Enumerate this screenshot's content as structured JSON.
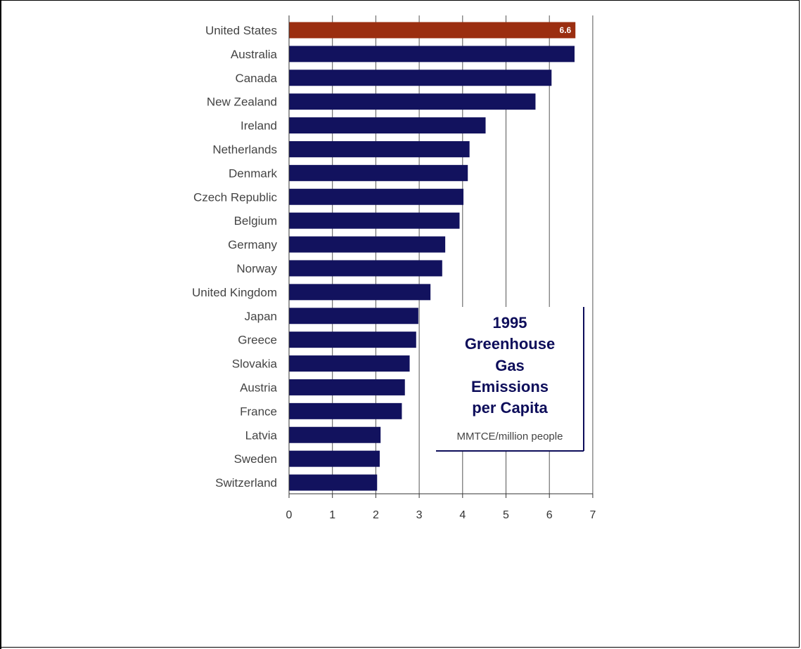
{
  "chart_data": {
    "type": "bar",
    "orientation": "horizontal",
    "title_lines": [
      "1995",
      "Greenhouse",
      "Gas",
      "Emissions",
      "per Capita"
    ],
    "units": "MMTCE/million people",
    "categories": [
      "United States",
      "Australia",
      "Canada",
      "New Zealand",
      "Ireland",
      "Netherlands",
      "Denmark",
      "Czech Republic",
      "Belgium",
      "Germany",
      "Norway",
      "United Kingdom",
      "Japan",
      "Greece",
      "Slovakia",
      "Austria",
      "France",
      "Latvia",
      "Sweden",
      "Switzerland"
    ],
    "values": [
      6.6,
      6.58,
      6.05,
      5.68,
      4.53,
      4.16,
      4.12,
      4.02,
      3.93,
      3.6,
      3.53,
      3.26,
      2.98,
      2.93,
      2.78,
      2.67,
      2.6,
      2.11,
      2.09,
      2.03
    ],
    "data_labels": {
      "0": "6.6"
    },
    "xlim": [
      0,
      7
    ],
    "xticks": [
      "0",
      "1",
      "2",
      "3",
      "4",
      "5",
      "6",
      "7"
    ],
    "grid": true,
    "colors": {
      "highlight": "#9b2e10",
      "bar": "#12125e",
      "grid": "#555555"
    }
  }
}
